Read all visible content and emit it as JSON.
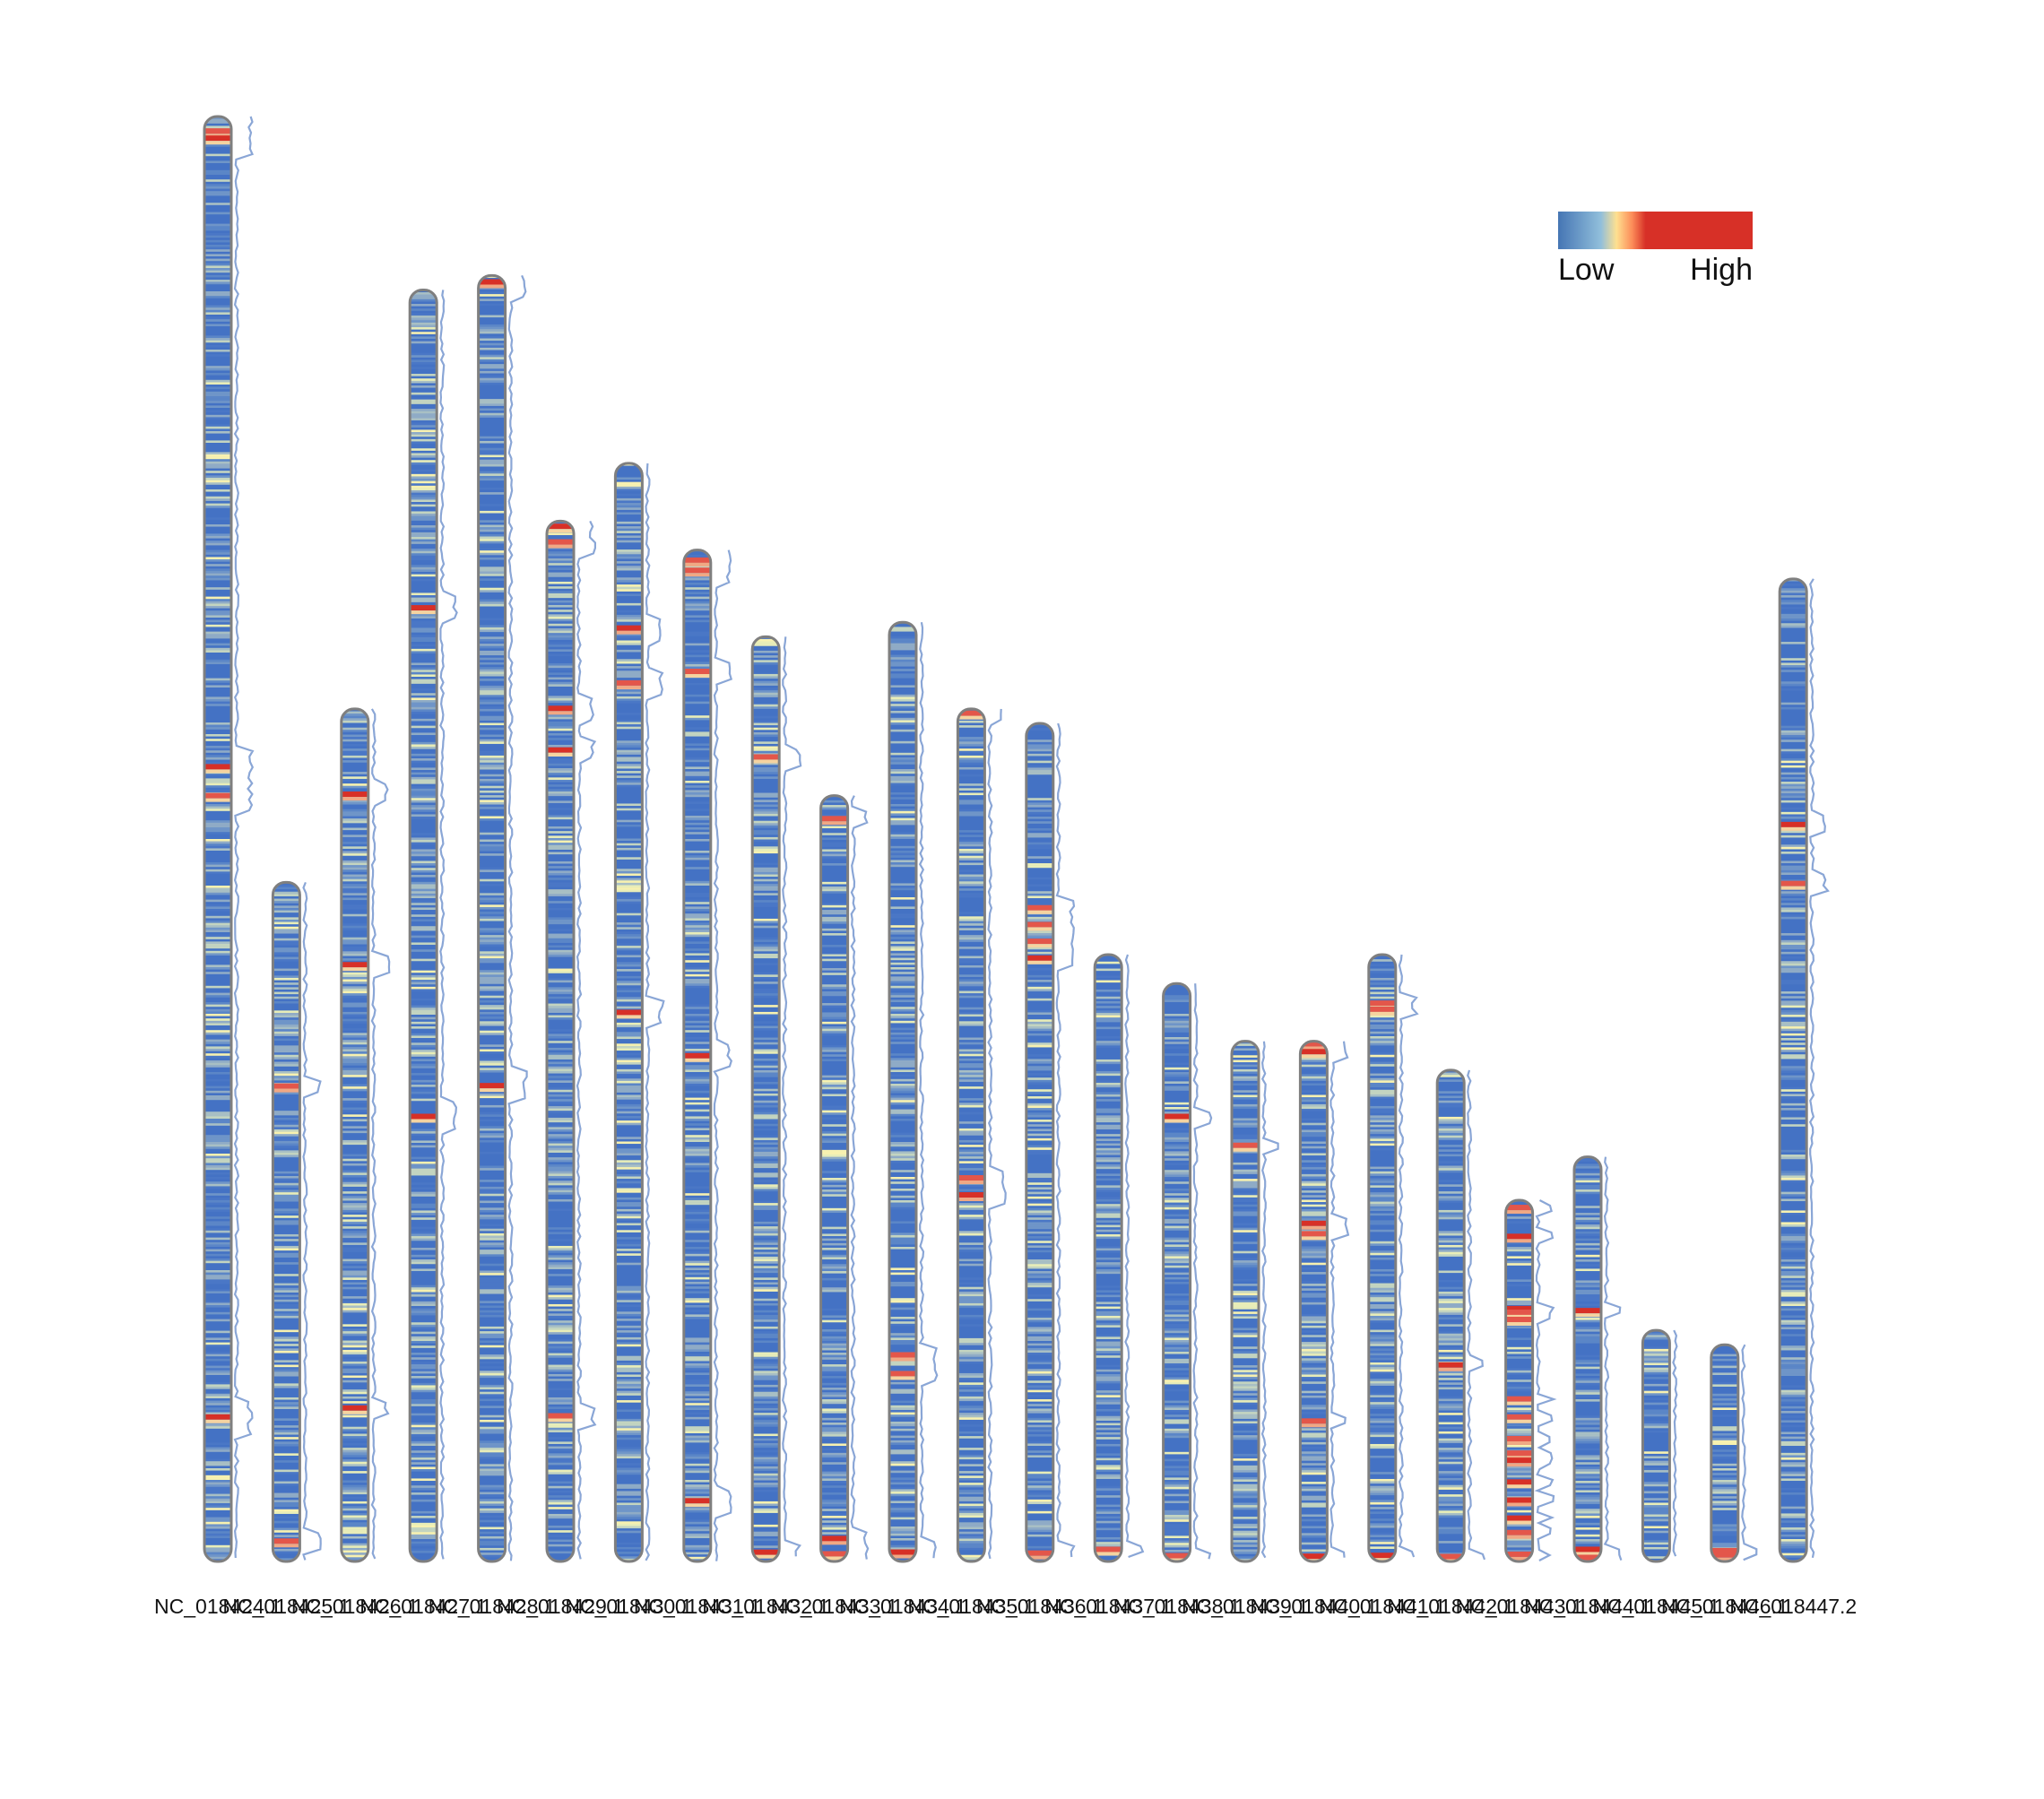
{
  "chart_data": {
    "type": "heatmap",
    "title": "",
    "xlabel": "",
    "ylabel": "",
    "description_of_view": "chromosome ideogram density heatmap",
    "legend": {
      "low_label": "Low",
      "high_label": "High",
      "colors": [
        "#4575b4",
        "#91bfdb",
        "#fee090",
        "#fc8d59",
        "#d73027"
      ],
      "placement": "top-right"
    },
    "colors": {
      "outline": "#7f7f7f",
      "density_line": "#8aa6d6"
    },
    "chromosomes": [
      {
        "name": "NC_018424.1",
        "length": 100,
        "hot": [
          0.01,
          0.015,
          0.45,
          0.47,
          0.9
        ]
      },
      {
        "name": "NC_018425.1",
        "length": 47,
        "hot": [
          0.3,
          0.97
        ]
      },
      {
        "name": "NC_018426.1",
        "length": 59,
        "hot": [
          0.1,
          0.3,
          0.82
        ]
      },
      {
        "name": "NC_018427.1",
        "length": 88,
        "hot": [
          0.25,
          0.65
        ]
      },
      {
        "name": "NC_018428.1",
        "length": 89,
        "hot": [
          0.005,
          0.63
        ]
      },
      {
        "name": "NC_018429.1",
        "length": 72,
        "hot": [
          0.005,
          0.02,
          0.18,
          0.22,
          0.86
        ]
      },
      {
        "name": "NC_018430.1",
        "length": 76,
        "hot": [
          0.15,
          0.2,
          0.5
        ]
      },
      {
        "name": "NC_018431.1",
        "length": 70,
        "hot": [
          0.01,
          0.02,
          0.12,
          0.5,
          0.94
        ]
      },
      {
        "name": "NC_018432.1",
        "length": 64,
        "hot": [
          0.13,
          0.99
        ]
      },
      {
        "name": "NC_018433.1",
        "length": 53,
        "hot": [
          0.03,
          0.97,
          0.99
        ]
      },
      {
        "name": "NC_018434.1",
        "length": 65,
        "hot": [
          0.78,
          0.8,
          0.99
        ]
      },
      {
        "name": "NC_018435.1",
        "length": 59,
        "hot": [
          0.005,
          0.55,
          0.57
        ]
      },
      {
        "name": "NC_018436.1",
        "length": 58,
        "hot": [
          0.22,
          0.24,
          0.26,
          0.28,
          0.99
        ]
      },
      {
        "name": "NC_018437.1",
        "length": 42,
        "hot": [
          0.98
        ]
      },
      {
        "name": "NC_018438.1",
        "length": 40,
        "hot": [
          0.23,
          0.99
        ]
      },
      {
        "name": "NC_018439.1",
        "length": 36,
        "hot": [
          0.2
        ]
      },
      {
        "name": "NC_018440.1",
        "length": 36,
        "hot": [
          0.005,
          0.02,
          0.35,
          0.37,
          0.73,
          0.99
        ]
      },
      {
        "name": "NC_018441.1",
        "length": 42,
        "hot": [
          0.08,
          0.09,
          0.99
        ]
      },
      {
        "name": "NC_018442.1",
        "length": 34,
        "hot": [
          0.6,
          0.99
        ]
      },
      {
        "name": "NC_018443.1",
        "length": 25,
        "hot": [
          0.02,
          0.1,
          0.3,
          0.31,
          0.33,
          0.55,
          0.6,
          0.66,
          0.7,
          0.72,
          0.78,
          0.83,
          0.88,
          0.92,
          0.98
        ]
      },
      {
        "name": "NC_018444.1",
        "length": 28,
        "hot": [
          0.38,
          0.97,
          0.99
        ]
      },
      {
        "name": "NC_018445.1",
        "length": 16,
        "hot": []
      },
      {
        "name": "NC_018446.1",
        "length": 15,
        "hot": [
          0.95,
          0.97
        ]
      },
      {
        "name": "NC_018447.2",
        "length": 68,
        "hot": [
          0.25,
          0.31
        ]
      }
    ]
  }
}
